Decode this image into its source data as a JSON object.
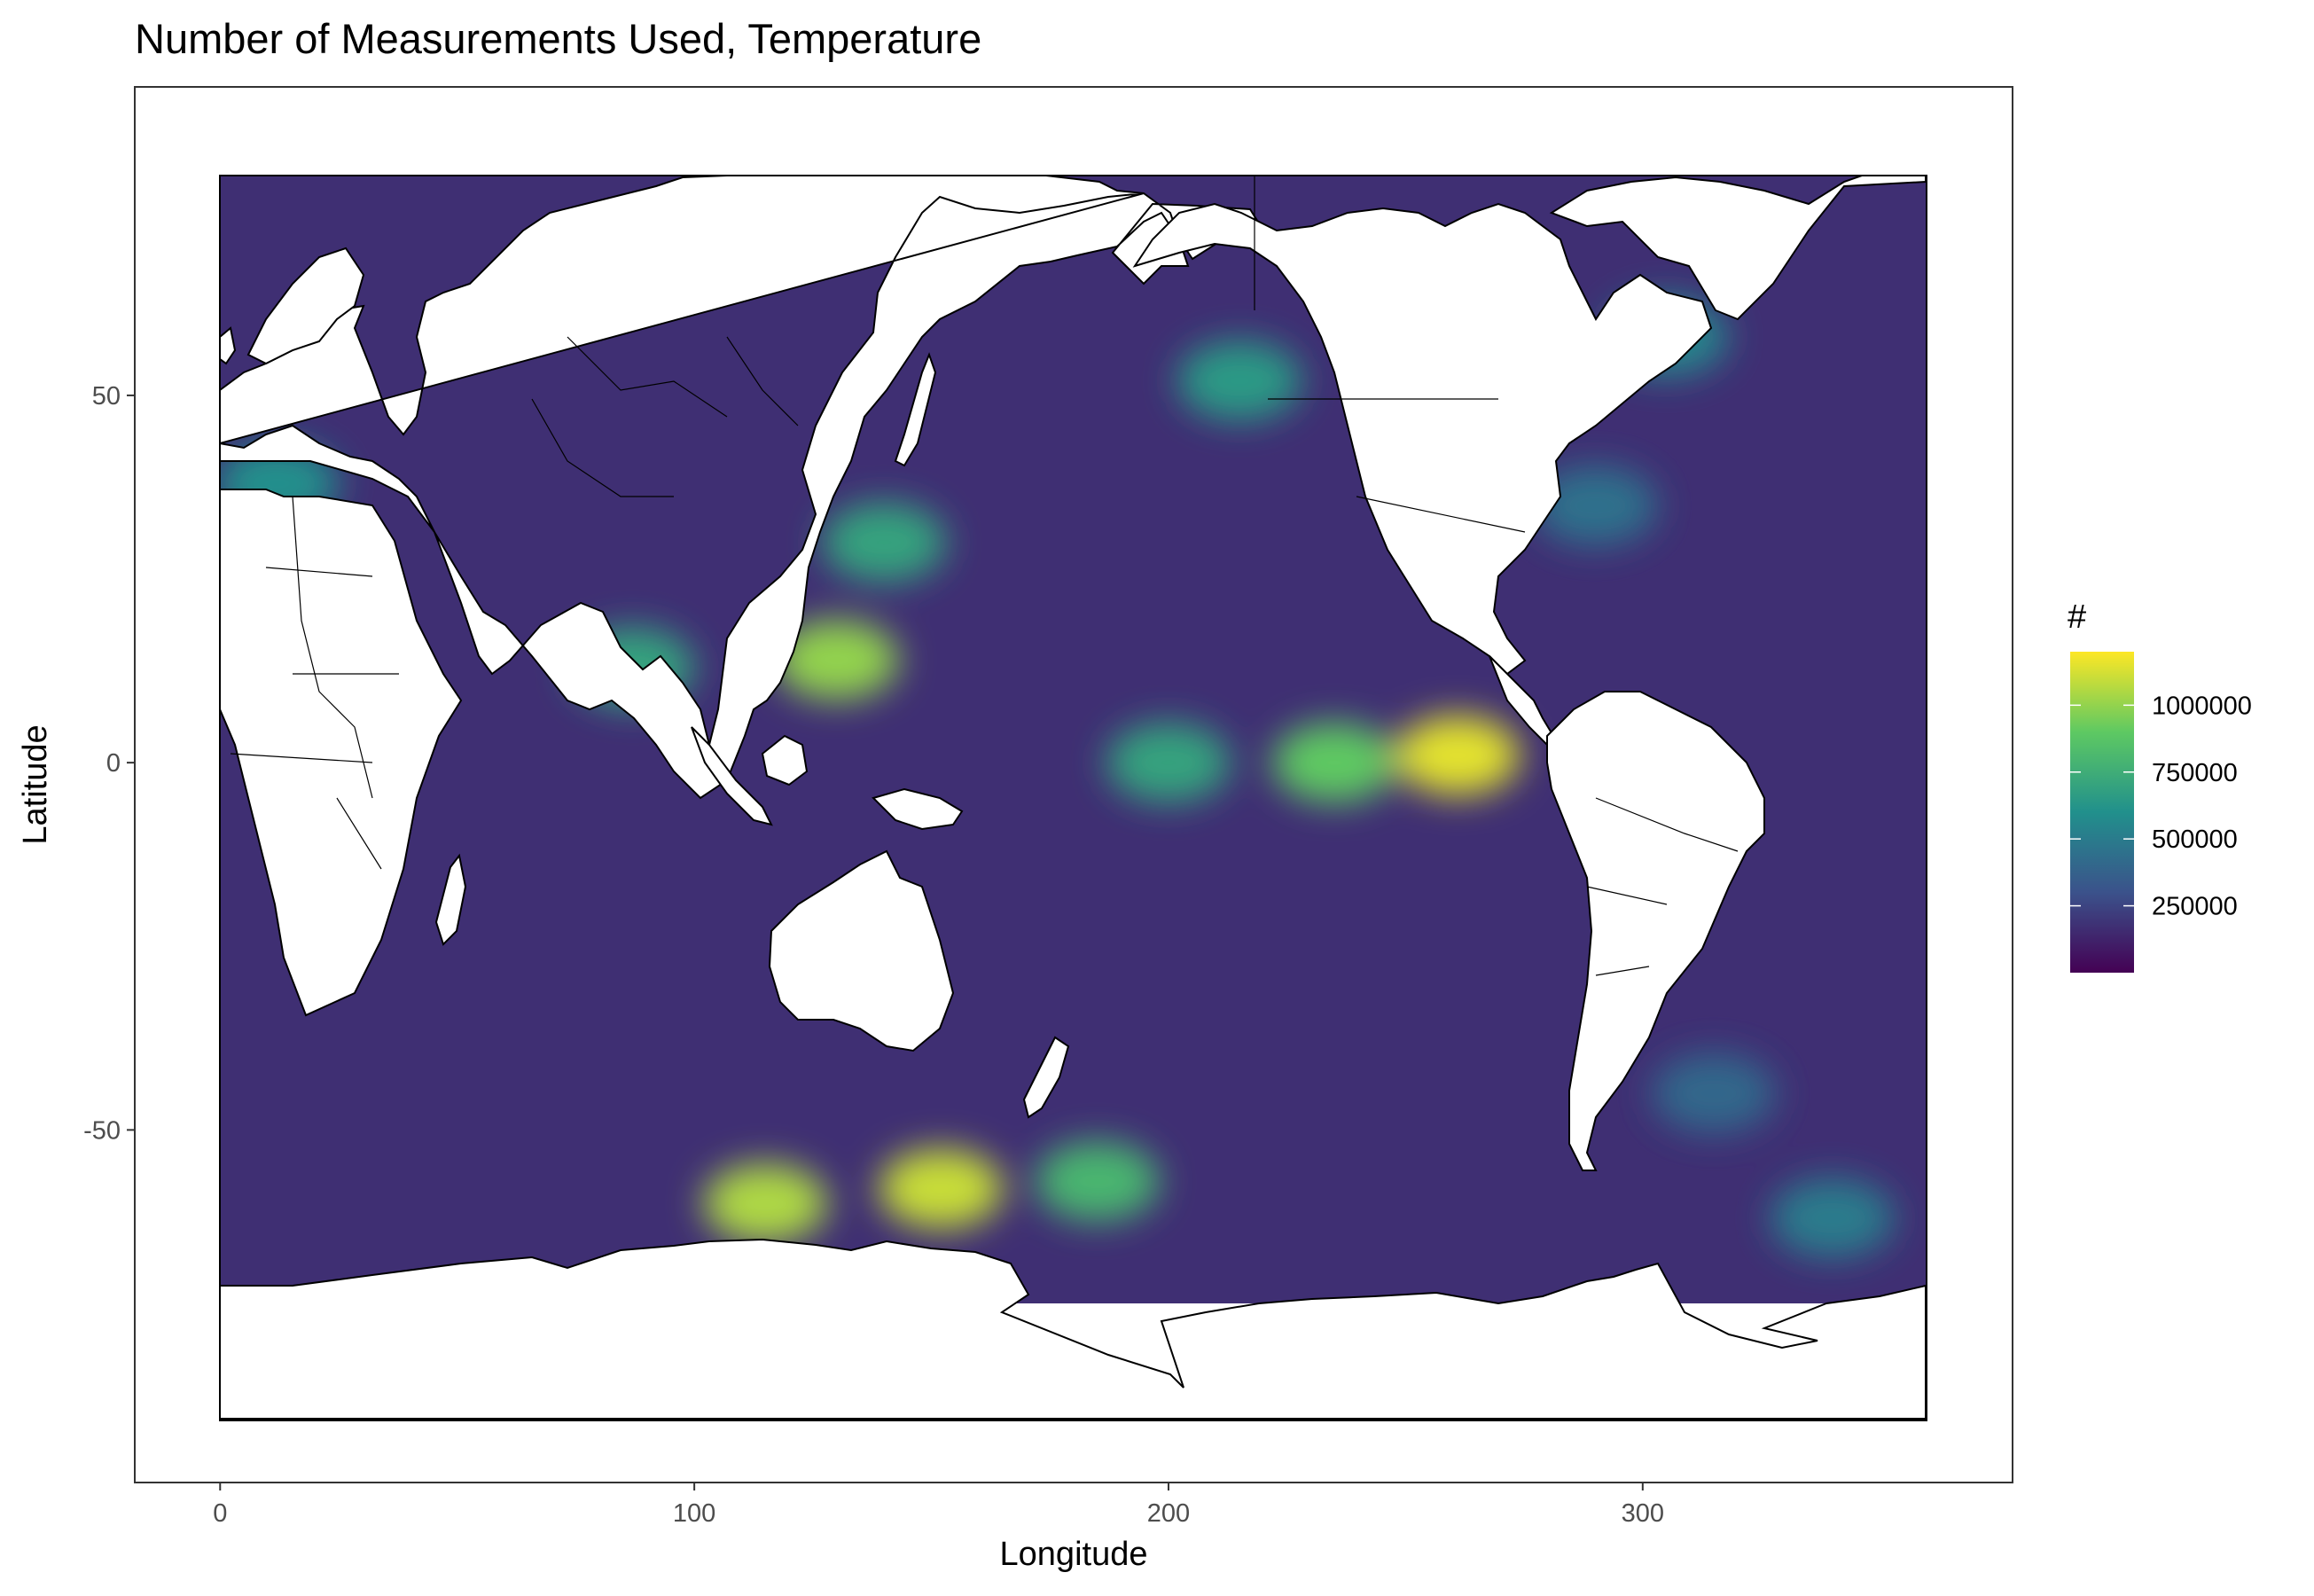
{
  "chart_data": {
    "type": "heatmap",
    "title": "Number of Measurements Used, Temperature",
    "xlabel": "Longitude",
    "ylabel": "Latitude",
    "xlim": [
      -18,
      378
    ],
    "ylim": [
      -98,
      92
    ],
    "data_extent": {
      "lon": [
        0,
        360
      ],
      "lat": [
        -90,
        80
      ]
    },
    "x_ticks": [
      0,
      100,
      200,
      300
    ],
    "y_ticks": [
      -50,
      0,
      50
    ],
    "x_tick_labels": [
      "0",
      "100",
      "200",
      "300"
    ],
    "y_tick_labels": [
      "-50",
      "0",
      "50"
    ],
    "grid": false,
    "legend": {
      "title": "#",
      "position": "right",
      "range": [
        0,
        1200000
      ],
      "breaks": [
        250000,
        500000,
        750000,
        1000000
      ],
      "labels": [
        "250000",
        "500000",
        "750000",
        "1000000"
      ],
      "colormap": "viridis",
      "colors": [
        "#440154",
        "#3b528b",
        "#21908c",
        "#5ec962",
        "#fde725"
      ]
    },
    "background_level": 170000,
    "hotspots": [
      {
        "name": "equatorial Pacific east",
        "lon": 261,
        "lat": 1,
        "value": 1150000
      },
      {
        "name": "equatorial Pacific central",
        "lon": 235,
        "lat": 0,
        "value": 900000
      },
      {
        "name": "equatorial Pacific west",
        "lon": 200,
        "lat": 0,
        "value": 700000
      },
      {
        "name": "Philippine Sea",
        "lon": 130,
        "lat": 14,
        "value": 1000000
      },
      {
        "name": "off Japan",
        "lon": 140,
        "lat": 30,
        "value": 700000
      },
      {
        "name": "Bay of Bengal",
        "lon": 87,
        "lat": 13,
        "value": 700000
      },
      {
        "name": "Mediterranean",
        "lon": 12,
        "lat": 38,
        "value": 600000
      },
      {
        "name": "Southern Ocean south of Australia",
        "lon": 115,
        "lat": -60,
        "value": 1050000
      },
      {
        "name": "Southern Ocean near Tasmania",
        "lon": 152,
        "lat": -58,
        "value": 1100000
      },
      {
        "name": "Southern Ocean south of NZ",
        "lon": 185,
        "lat": -57,
        "value": 800000
      },
      {
        "name": "Gulf of Alaska",
        "lon": 215,
        "lat": 52,
        "value": 650000
      },
      {
        "name": "Labrador Sea",
        "lon": 305,
        "lat": 58,
        "value": 550000
      },
      {
        "name": "Drake Passage",
        "lon": 340,
        "lat": -62,
        "value": 500000
      },
      {
        "name": "Gulf Stream",
        "lon": 290,
        "lat": 35,
        "value": 450000
      },
      {
        "name": "Argentine Basin",
        "lon": 315,
        "lat": -45,
        "value": 400000
      }
    ],
    "low_regions": [
      {
        "name": "Arctic margins / Antarctic shelf",
        "value": 20000
      }
    ]
  }
}
